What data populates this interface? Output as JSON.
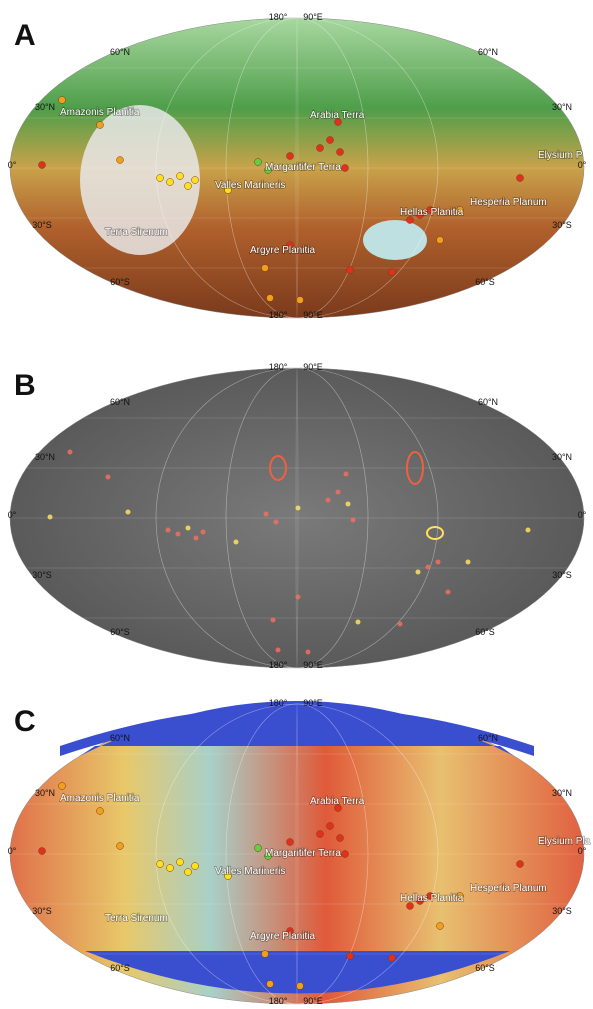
{
  "panels": [
    {
      "letter": "A",
      "grid_labels": [
        "180°",
        "90°E",
        "60°N",
        "60°N",
        "30°N",
        "30°N",
        "0°",
        "0°",
        "30°S",
        "30°S",
        "60°S",
        "60°S",
        "180°",
        "90°E"
      ],
      "places": [
        "Amazonis Planitia",
        "Arabia Terra",
        "Elysium P",
        "Margaritifer Terra",
        "Valles Marineris",
        "Hesperia Planum",
        "Terra Sirenum",
        "Hellas Planitia",
        "Argyre Planitia"
      ]
    },
    {
      "letter": "B",
      "grid_labels": [
        "180°",
        "90°E",
        "60°N",
        "60°N",
        "30°N",
        "30°N",
        "0°",
        "0°",
        "30°S",
        "30°S",
        "60°S",
        "60°S",
        "180°",
        "90°E"
      ],
      "places": []
    },
    {
      "letter": "C",
      "grid_labels": [
        "180°",
        "90°E",
        "60°N",
        "60°N",
        "30°N",
        "30°N",
        "0°",
        "0°",
        "30°S",
        "30°S",
        "60°S",
        "60°S",
        "180°",
        "90°E"
      ],
      "places": [
        "Amazonis Planitia",
        "Arabia Terra",
        "Elysium Pla",
        "Margaritifer Terra",
        "Valles Marineris",
        "Hesperia Planum",
        "Terra Sirenum",
        "Hellas Planitia",
        "Argyre Planitia"
      ]
    }
  ]
}
